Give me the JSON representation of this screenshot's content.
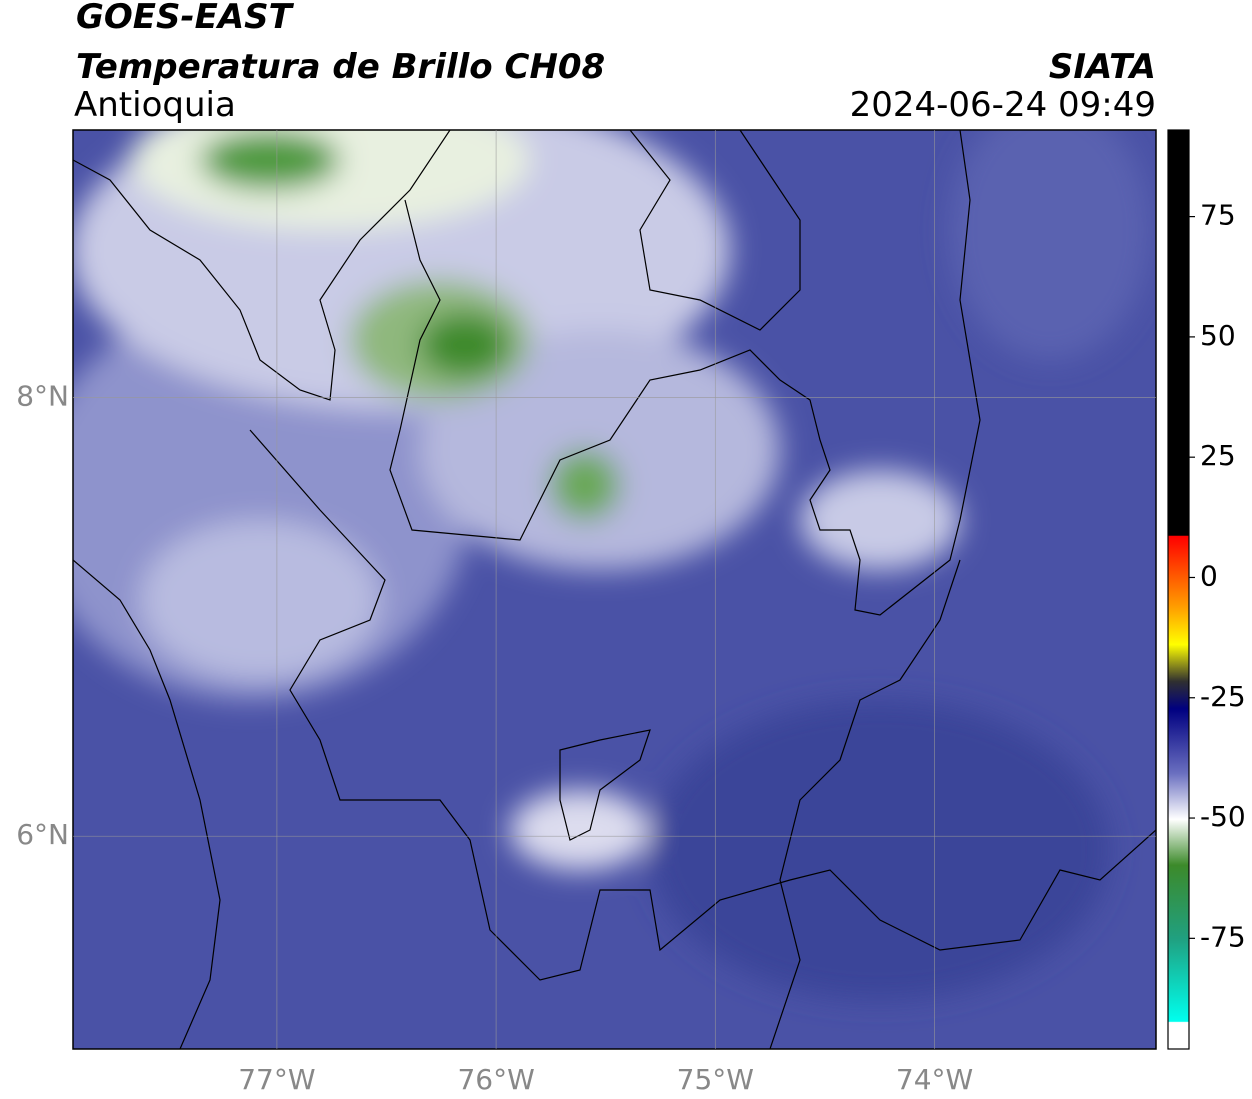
{
  "chart_data": {
    "type": "map",
    "title": "GOES-EAST",
    "subtitle": "Temperatura de Brillo CH08",
    "region": "Antioquia",
    "source": "SIATA",
    "datetime": "2024-06-24 09:49",
    "xlim": [
      -77.93,
      -72.99
    ],
    "ylim": [
      5.03,
      9.22
    ],
    "xticks": [
      {
        "value": -77,
        "label": "77°W"
      },
      {
        "value": -76,
        "label": "76°W"
      },
      {
        "value": -75,
        "label": "75°W"
      },
      {
        "value": -74,
        "label": "74°W"
      }
    ],
    "yticks": [
      {
        "value": 8,
        "label": "8°N"
      },
      {
        "value": 6,
        "label": "6°N"
      }
    ],
    "grid": true,
    "colorbar": {
      "lim": [
        -98,
        93
      ],
      "ticks": [
        75,
        50,
        25,
        0,
        -25,
        -50,
        -75
      ]
    }
  }
}
